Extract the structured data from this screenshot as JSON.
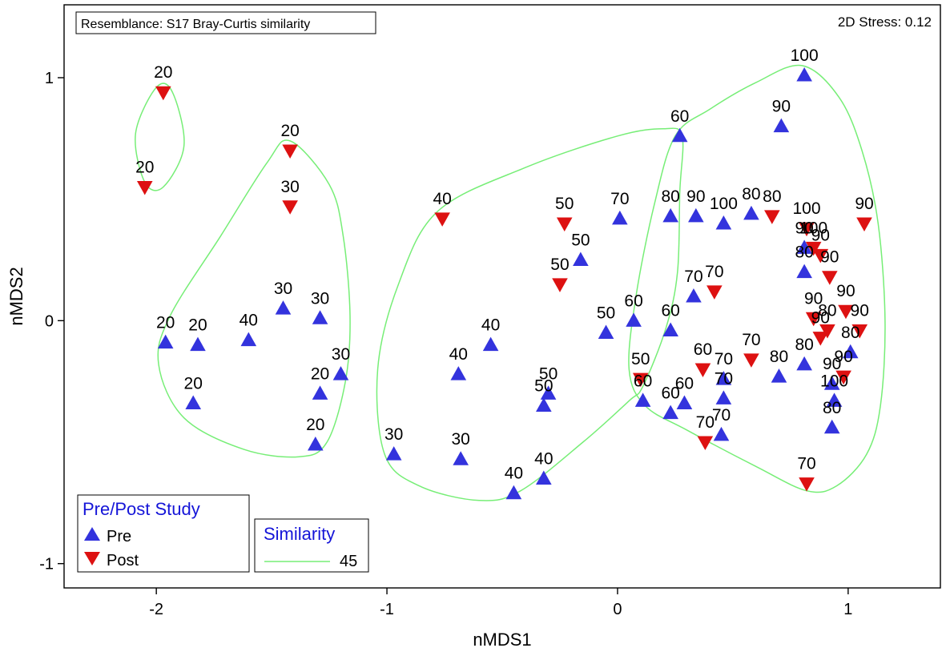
{
  "chart_data": {
    "type": "scatter",
    "title": "",
    "xlabel": "nMDS1",
    "ylabel": "nMDS2",
    "xlim": [
      -2.4,
      1.4
    ],
    "ylim": [
      -1.1,
      1.3
    ],
    "xticks": [
      -2,
      -1,
      0,
      1
    ],
    "yticks": [
      -1,
      0,
      1
    ],
    "resemblance_label": "Resemblance: S17 Bray-Curtis similarity",
    "stress_label": "2D Stress: 0.12",
    "legend_study": {
      "title": "Pre/Post Study",
      "entries": [
        "Pre",
        "Post"
      ]
    },
    "legend_similarity": {
      "title": "Similarity",
      "entries": [
        "45"
      ]
    },
    "colors": {
      "pre": "#3333dd",
      "post": "#dd1111",
      "contour": "#77ee77",
      "legend_title": "#1515d8"
    },
    "series": [
      {
        "name": "Pre",
        "marker": "triangle-up",
        "points": [
          {
            "x": -1.96,
            "y": -0.09,
            "label": "20"
          },
          {
            "x": -1.82,
            "y": -0.1,
            "label": "20"
          },
          {
            "x": -1.84,
            "y": -0.34,
            "label": "20"
          },
          {
            "x": -1.6,
            "y": -0.08,
            "label": "40"
          },
          {
            "x": -1.45,
            "y": 0.05,
            "label": "30"
          },
          {
            "x": -1.29,
            "y": 0.01,
            "label": "30"
          },
          {
            "x": -1.2,
            "y": -0.22,
            "label": "30"
          },
          {
            "x": -1.29,
            "y": -0.3,
            "label": "20"
          },
          {
            "x": -1.31,
            "y": -0.51,
            "label": "20"
          },
          {
            "x": -0.97,
            "y": -0.55,
            "label": "30"
          },
          {
            "x": -0.68,
            "y": -0.57,
            "label": "30"
          },
          {
            "x": -0.69,
            "y": -0.22,
            "label": "40"
          },
          {
            "x": -0.55,
            "y": -0.1,
            "label": "40"
          },
          {
            "x": -0.45,
            "y": -0.71,
            "label": "40"
          },
          {
            "x": -0.32,
            "y": -0.65,
            "label": "40"
          },
          {
            "x": -0.3,
            "y": -0.3,
            "label": "50"
          },
          {
            "x": -0.32,
            "y": -0.35,
            "label": "50"
          },
          {
            "x": -0.16,
            "y": 0.25,
            "label": "50"
          },
          {
            "x": -0.05,
            "y": -0.05,
            "label": "50"
          },
          {
            "x": 0.01,
            "y": 0.42,
            "label": "70"
          },
          {
            "x": 0.07,
            "y": 0.0,
            "label": "60"
          },
          {
            "x": 0.11,
            "y": -0.33,
            "label": "60"
          },
          {
            "x": 0.23,
            "y": 0.43,
            "label": "80"
          },
          {
            "x": 0.27,
            "y": 0.76,
            "label": "60"
          },
          {
            "x": 0.23,
            "y": -0.04,
            "label": "60"
          },
          {
            "x": 0.23,
            "y": -0.38,
            "label": "60"
          },
          {
            "x": 0.29,
            "y": -0.34,
            "label": "60"
          },
          {
            "x": 0.34,
            "y": 0.43,
            "label": "90"
          },
          {
            "x": 0.33,
            "y": 0.1,
            "label": "70"
          },
          {
            "x": 0.46,
            "y": 0.4,
            "label": "100"
          },
          {
            "x": 0.46,
            "y": -0.24,
            "label": "70"
          },
          {
            "x": 0.46,
            "y": -0.32,
            "label": "70"
          },
          {
            "x": 0.45,
            "y": -0.47,
            "label": "70"
          },
          {
            "x": 0.58,
            "y": 0.44,
            "label": "80"
          },
          {
            "x": 0.71,
            "y": 0.8,
            "label": "90"
          },
          {
            "x": 0.7,
            "y": -0.23,
            "label": "80"
          },
          {
            "x": 0.81,
            "y": 1.01,
            "label": "100"
          },
          {
            "x": 0.81,
            "y": -0.18,
            "label": "80"
          },
          {
            "x": 0.81,
            "y": 0.3,
            "label": "90"
          },
          {
            "x": 0.81,
            "y": 0.2,
            "label": "80"
          },
          {
            "x": 0.93,
            "y": -0.26,
            "label": "90"
          },
          {
            "x": 0.94,
            "y": -0.33,
            "label": "100"
          },
          {
            "x": 0.93,
            "y": -0.44,
            "label": "80"
          },
          {
            "x": 1.01,
            "y": -0.13,
            "label": "80"
          }
        ]
      },
      {
        "name": "Post",
        "marker": "triangle-down",
        "points": [
          {
            "x": -1.97,
            "y": 0.94,
            "label": "20"
          },
          {
            "x": -2.05,
            "y": 0.55,
            "label": "20"
          },
          {
            "x": -1.42,
            "y": 0.7,
            "label": "20"
          },
          {
            "x": -1.42,
            "y": 0.47,
            "label": "30"
          },
          {
            "x": -0.76,
            "y": 0.42,
            "label": "40"
          },
          {
            "x": -0.23,
            "y": 0.4,
            "label": "50"
          },
          {
            "x": -0.25,
            "y": 0.15,
            "label": "50"
          },
          {
            "x": 0.1,
            "y": -0.24,
            "label": "50"
          },
          {
            "x": 0.37,
            "y": -0.2,
            "label": "60"
          },
          {
            "x": 0.38,
            "y": -0.5,
            "label": "70"
          },
          {
            "x": 0.42,
            "y": 0.12,
            "label": "70"
          },
          {
            "x": 0.58,
            "y": -0.16,
            "label": "70"
          },
          {
            "x": 0.67,
            "y": 0.43,
            "label": "80"
          },
          {
            "x": 0.82,
            "y": 0.38,
            "label": "100"
          },
          {
            "x": 0.85,
            "y": 0.3,
            "label": "100"
          },
          {
            "x": 0.88,
            "y": 0.27,
            "label": "90"
          },
          {
            "x": 0.92,
            "y": 0.18,
            "label": "90"
          },
          {
            "x": 0.85,
            "y": 0.01,
            "label": "90"
          },
          {
            "x": 0.91,
            "y": -0.04,
            "label": "80"
          },
          {
            "x": 0.99,
            "y": 0.04,
            "label": "90"
          },
          {
            "x": 0.88,
            "y": -0.07,
            "label": "90"
          },
          {
            "x": 1.05,
            "y": -0.04,
            "label": "90"
          },
          {
            "x": 1.07,
            "y": 0.4,
            "label": "90"
          },
          {
            "x": 0.98,
            "y": -0.23,
            "label": "90"
          },
          {
            "x": 0.82,
            "y": -0.67,
            "label": "70"
          }
        ]
      }
    ],
    "contours": [
      {
        "level": "45",
        "points": [
          [
            -2.05,
            0.57
          ],
          [
            -2.09,
            0.77
          ],
          [
            -2.0,
            0.96
          ],
          [
            -1.93,
            0.94
          ],
          [
            -1.88,
            0.72
          ],
          [
            -1.97,
            0.55
          ],
          [
            -2.05,
            0.57
          ]
        ]
      },
      {
        "level": "45",
        "points": [
          [
            -1.42,
            0.74
          ],
          [
            -1.25,
            0.56
          ],
          [
            -1.19,
            0.35
          ],
          [
            -1.16,
            0.02
          ],
          [
            -1.18,
            -0.25
          ],
          [
            -1.26,
            -0.5
          ],
          [
            -1.38,
            -0.56
          ],
          [
            -1.62,
            -0.53
          ],
          [
            -1.88,
            -0.4
          ],
          [
            -1.99,
            -0.18
          ],
          [
            -1.94,
            0.02
          ],
          [
            -1.72,
            0.35
          ],
          [
            -1.52,
            0.65
          ],
          [
            -1.42,
            0.74
          ]
        ]
      },
      {
        "level": "45",
        "points": [
          [
            -0.78,
            0.45
          ],
          [
            -0.4,
            0.63
          ],
          [
            0.0,
            0.76
          ],
          [
            0.2,
            0.79
          ],
          [
            0.28,
            0.76
          ],
          [
            0.27,
            0.53
          ],
          [
            0.26,
            0.2
          ],
          [
            0.21,
            -0.03
          ],
          [
            0.11,
            -0.27
          ],
          [
            0.05,
            -0.33
          ],
          [
            -0.15,
            -0.5
          ],
          [
            -0.42,
            -0.7
          ],
          [
            -0.6,
            -0.74
          ],
          [
            -0.86,
            -0.68
          ],
          [
            -1.01,
            -0.55
          ],
          [
            -1.04,
            -0.2
          ],
          [
            -0.95,
            0.15
          ],
          [
            -0.78,
            0.45
          ]
        ]
      },
      {
        "level": "45",
        "points": [
          [
            0.25,
            0.76
          ],
          [
            0.4,
            0.87
          ],
          [
            0.6,
            0.98
          ],
          [
            0.8,
            1.05
          ],
          [
            0.96,
            0.92
          ],
          [
            1.06,
            0.7
          ],
          [
            1.13,
            0.4
          ],
          [
            1.16,
            0.0
          ],
          [
            1.14,
            -0.35
          ],
          [
            1.08,
            -0.55
          ],
          [
            0.95,
            -0.68
          ],
          [
            0.82,
            -0.7
          ],
          [
            0.6,
            -0.6
          ],
          [
            0.3,
            -0.45
          ],
          [
            0.12,
            -0.35
          ],
          [
            0.05,
            -0.2
          ],
          [
            0.08,
            0.1
          ],
          [
            0.16,
            0.48
          ],
          [
            0.25,
            0.76
          ]
        ]
      }
    ]
  }
}
